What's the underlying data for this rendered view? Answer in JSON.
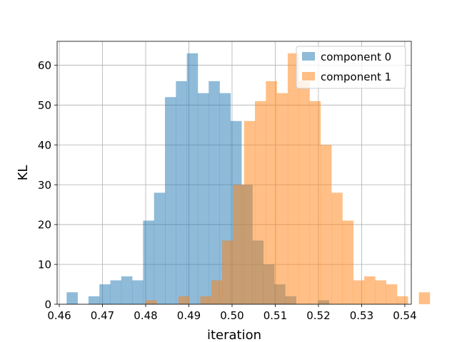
{
  "chart_data": {
    "type": "histogram",
    "xlabel": "iteration",
    "ylabel": "KL",
    "xlim": [
      0.4595,
      0.5415
    ],
    "ylim": [
      0,
      66
    ],
    "x_ticks": [
      0.46,
      0.47,
      0.48,
      0.49,
      0.5,
      0.51,
      0.52,
      0.53,
      0.54
    ],
    "x_tick_labels": [
      "0.46",
      "0.47",
      "0.48",
      "0.49",
      "0.50",
      "0.51",
      "0.52",
      "0.53",
      "0.54"
    ],
    "y_ticks": [
      0,
      10,
      20,
      30,
      40,
      50,
      60
    ],
    "y_tick_labels": [
      "0",
      "10",
      "20",
      "30",
      "40",
      "50",
      "60"
    ],
    "grid": true,
    "legend_position": "top-right",
    "alpha": 0.5,
    "series": [
      {
        "name": "component 0",
        "color": "#1f77b4",
        "bin_start": 0.4617,
        "bin_width": 0.00253,
        "counts": [
          3,
          0,
          2,
          5,
          6,
          7,
          6,
          21,
          28,
          52,
          56,
          63,
          53,
          56,
          53,
          46,
          30,
          16,
          10,
          5,
          2,
          0,
          0,
          1
        ]
      },
      {
        "name": "component 1",
        "color": "#ff7f0e",
        "bin_start": 0.48,
        "bin_width": 0.00253,
        "counts": [
          1,
          0,
          0,
          2,
          0,
          2,
          6,
          16,
          30,
          46,
          51,
          56,
          53,
          63,
          56,
          51,
          40,
          28,
          21,
          6,
          7,
          6,
          5,
          2,
          0,
          3
        ]
      }
    ]
  }
}
